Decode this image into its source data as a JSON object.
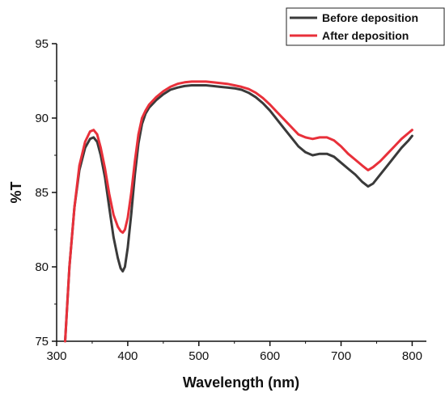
{
  "chart_data": {
    "type": "line",
    "xlabel": "Wavelength (nm)",
    "ylabel": "%T",
    "xlim": [
      300,
      820
    ],
    "ylim": [
      75,
      95
    ],
    "xticks": [
      300,
      400,
      500,
      600,
      700,
      800
    ],
    "yticks": [
      75,
      80,
      85,
      90,
      95
    ],
    "grid": false,
    "legend_position": "top-right",
    "series": [
      {
        "name": "Before deposition",
        "color": "#3a3a3a",
        "x": [
          312,
          318,
          325,
          332,
          340,
          347,
          352,
          357,
          362,
          368,
          374,
          380,
          386,
          390,
          393,
          396,
          400,
          405,
          410,
          415,
          420,
          425,
          430,
          440,
          450,
          460,
          470,
          480,
          490,
          500,
          510,
          520,
          530,
          540,
          550,
          560,
          570,
          580,
          590,
          600,
          610,
          620,
          630,
          640,
          650,
          660,
          670,
          680,
          690,
          700,
          710,
          720,
          730,
          738,
          745,
          755,
          765,
          775,
          785,
          795,
          800
        ],
        "y": [
          75.0,
          80.0,
          84.0,
          86.5,
          88.0,
          88.6,
          88.7,
          88.4,
          87.5,
          86.0,
          84.0,
          82.0,
          80.6,
          79.9,
          79.7,
          80.0,
          81.3,
          83.6,
          86.2,
          88.3,
          89.6,
          90.3,
          90.7,
          91.2,
          91.6,
          91.9,
          92.05,
          92.15,
          92.2,
          92.2,
          92.2,
          92.15,
          92.1,
          92.05,
          92.0,
          91.9,
          91.7,
          91.4,
          91.0,
          90.5,
          89.9,
          89.3,
          88.7,
          88.1,
          87.7,
          87.5,
          87.6,
          87.6,
          87.4,
          87.0,
          86.6,
          86.2,
          85.7,
          85.4,
          85.6,
          86.2,
          86.8,
          87.4,
          88.0,
          88.5,
          88.8
        ]
      },
      {
        "name": "After deposition",
        "color": "#e8303a",
        "x": [
          312,
          318,
          325,
          332,
          340,
          347,
          352,
          357,
          362,
          368,
          374,
          380,
          386,
          390,
          393,
          396,
          400,
          405,
          410,
          415,
          420,
          425,
          430,
          440,
          450,
          460,
          470,
          480,
          490,
          500,
          510,
          520,
          530,
          540,
          550,
          560,
          570,
          580,
          590,
          600,
          610,
          620,
          630,
          640,
          650,
          660,
          670,
          680,
          690,
          700,
          710,
          720,
          730,
          738,
          745,
          755,
          765,
          775,
          785,
          795,
          800
        ],
        "y": [
          75.0,
          80.0,
          84.0,
          86.8,
          88.4,
          89.1,
          89.2,
          88.9,
          88.0,
          86.6,
          84.9,
          83.5,
          82.7,
          82.4,
          82.3,
          82.5,
          83.3,
          85.0,
          87.1,
          88.9,
          90.0,
          90.5,
          90.9,
          91.4,
          91.8,
          92.1,
          92.3,
          92.4,
          92.45,
          92.45,
          92.45,
          92.4,
          92.35,
          92.3,
          92.2,
          92.1,
          91.95,
          91.7,
          91.35,
          90.9,
          90.4,
          89.9,
          89.4,
          88.9,
          88.7,
          88.6,
          88.7,
          88.7,
          88.5,
          88.1,
          87.6,
          87.2,
          86.8,
          86.5,
          86.7,
          87.1,
          87.6,
          88.1,
          88.6,
          89.0,
          89.2
        ]
      }
    ]
  }
}
